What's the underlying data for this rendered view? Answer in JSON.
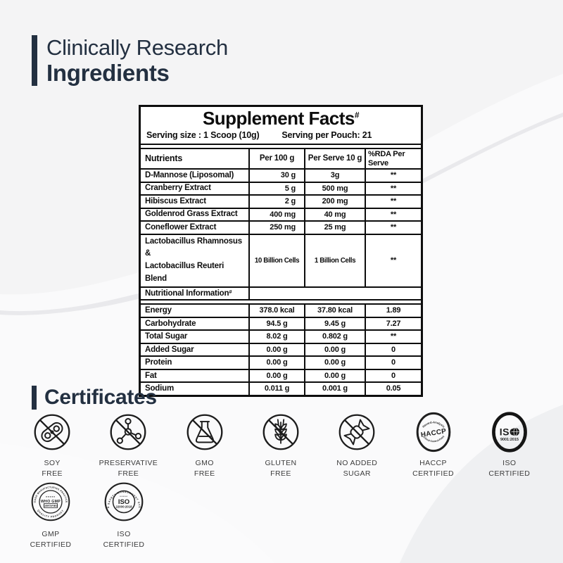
{
  "page": {
    "background": "#f4f4f5",
    "accent_navy": "#233041"
  },
  "header": {
    "title_line1": "Clinically Research",
    "title_line2": "Ingredients"
  },
  "supplement_table": {
    "title": "Supplement Facts",
    "title_superscript": "#",
    "serving_size": "Serving size : 1 Scoop (10g)",
    "serving_per_pouch": "Serving per Pouch: 21",
    "columns": [
      "Nutrients",
      "Per 100 g",
      "Per Serve 10 g",
      "%RDA Per Serve"
    ],
    "rows": [
      {
        "type": "item",
        "align": "right",
        "name": "D-Mannose (Liposomal)",
        "per_100g": "30 g",
        "per_serve": "3g",
        "rda": "**"
      },
      {
        "type": "item",
        "align": "right",
        "name": "Cranberry Extract",
        "per_100g": "5 g",
        "per_serve": "500 mg",
        "rda": "**"
      },
      {
        "type": "item",
        "align": "right",
        "name": "Hibiscus Extract",
        "per_100g": "2 g",
        "per_serve": "200 mg",
        "rda": "**"
      },
      {
        "type": "item",
        "align": "right",
        "name": "Goldenrod Grass Extract",
        "per_100g": "400 mg",
        "per_serve": "40 mg",
        "rda": "**"
      },
      {
        "type": "item",
        "align": "right",
        "name": "Coneflower Extract",
        "per_100g": "250 mg",
        "per_serve": "25 mg",
        "rda": "**"
      },
      {
        "type": "item",
        "align": "center",
        "tall": true,
        "name": "Lactobacillus Rhamnosus &\nLactobacillus Reuteri Blend",
        "per_100g": "10 Billion Cells",
        "per_serve": "1 Billion Cells",
        "rda": "**"
      },
      {
        "type": "section",
        "name": "Nutritional Information",
        "superscript": "#"
      },
      {
        "type": "item",
        "align": "center",
        "name": "Energy",
        "per_100g": "378.0 kcal",
        "per_serve": "37.80 kcal",
        "rda": "1.89"
      },
      {
        "type": "item",
        "align": "center",
        "name": "Carbohydrate",
        "per_100g": "94.5 g",
        "per_serve": "9.45 g",
        "rda": "7.27"
      },
      {
        "type": "item",
        "align": "center",
        "name": "Total Sugar",
        "per_100g": "8.02 g",
        "per_serve": "0.802 g",
        "rda": "**"
      },
      {
        "type": "item",
        "align": "center",
        "name": "Added Sugar",
        "per_100g": "0.00 g",
        "per_serve": "0.00 g",
        "rda": "0"
      },
      {
        "type": "item",
        "align": "center",
        "name": "Protein",
        "per_100g": "0.00 g",
        "per_serve": "0.00 g",
        "rda": "0"
      },
      {
        "type": "item",
        "align": "center",
        "name": "Fat",
        "per_100g": "0.00 g",
        "per_serve": "0.00 g",
        "rda": "0"
      },
      {
        "type": "item",
        "align": "center",
        "name": "Sodium",
        "per_100g": "0.011 g",
        "per_serve": "0.001 g",
        "rda": "0.05"
      }
    ]
  },
  "certificates": {
    "title": "Certificates",
    "row1": [
      {
        "icon": "soy-free-icon",
        "label": "SOY\nFREE"
      },
      {
        "icon": "preservative-free-icon",
        "label": "PRESERVATIVE\nFREE"
      },
      {
        "icon": "gmo-free-icon",
        "label": "GMO\nFREE"
      },
      {
        "icon": "gluten-free-icon",
        "label": "GLUTEN\nFREE"
      },
      {
        "icon": "no-added-sugar-icon",
        "label": "NO ADDED\nSUGAR"
      },
      {
        "icon": "haccp-badge-icon",
        "label": "HACCP\nCERTIFIED"
      },
      {
        "icon": "iso-9001-badge-icon",
        "label": "ISO\nCERTIFIED"
      }
    ],
    "row2": [
      {
        "icon": "gmp-badge-icon",
        "label": "GMP\nCERTIFIED"
      },
      {
        "icon": "iso-22000-badge-icon",
        "label": "ISO\nCERTIFIED"
      }
    ],
    "badge_text": {
      "haccp": {
        "arc_top": "Hazard-Analysis",
        "center": "HACCP",
        "arc_bottom": "Critical-Control-Point"
      },
      "iso_9001": {
        "center": "ISO",
        "code": "9001:2015"
      },
      "gmp": {
        "arc_top": "GOOD MANUFACTURING PRACTICE",
        "arc_bottom": "QUALITY PRODUCT",
        "stars": "*****",
        "center": "WHO GMP",
        "boxed": "CERTIFIED"
      },
      "iso_22000": {
        "arc": "FOOD SAFETY MANAGEMENT SYSTEM",
        "stars": "*****",
        "center": "ISO",
        "code": "22000:2018"
      }
    }
  }
}
